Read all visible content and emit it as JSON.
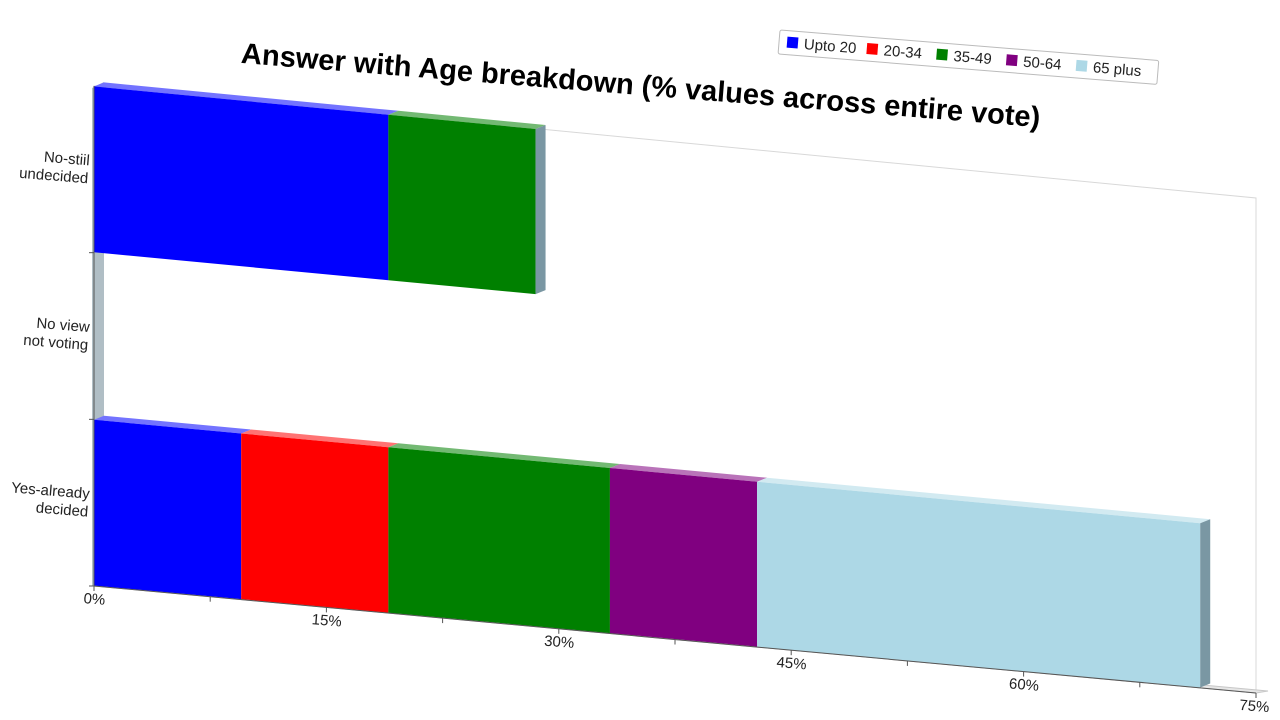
{
  "chart_data": {
    "type": "bar",
    "orientation": "horizontal",
    "stacked": true,
    "title": "Answer with Age breakdown (% values across entire vote)",
    "categories": [
      "No-stiil\nundecided",
      "No view\nnot voting",
      "Yes-already\ndecided"
    ],
    "series": [
      {
        "name": "Upto 20",
        "color": "#0000ff",
        "values": [
          19,
          0,
          9.5
        ]
      },
      {
        "name": "20-34",
        "color": "#ff0000",
        "values": [
          0,
          0,
          9.5
        ]
      },
      {
        "name": "35-49",
        "color": "#008000",
        "values": [
          9.5,
          0,
          14.3
        ]
      },
      {
        "name": "50-64",
        "color": "#800080",
        "values": [
          0,
          0,
          9.5
        ]
      },
      {
        "name": "65 plus",
        "color": "#add8e6",
        "values": [
          0,
          0,
          28.6
        ]
      }
    ],
    "xlim": [
      0,
      75
    ],
    "x_ticks": [
      "0%",
      "15%",
      "30%",
      "45%",
      "60%",
      "75%"
    ],
    "xlabel": "",
    "ylabel": "",
    "legend_position": "top-right",
    "grid": false,
    "rendering": "3d-perspective"
  }
}
